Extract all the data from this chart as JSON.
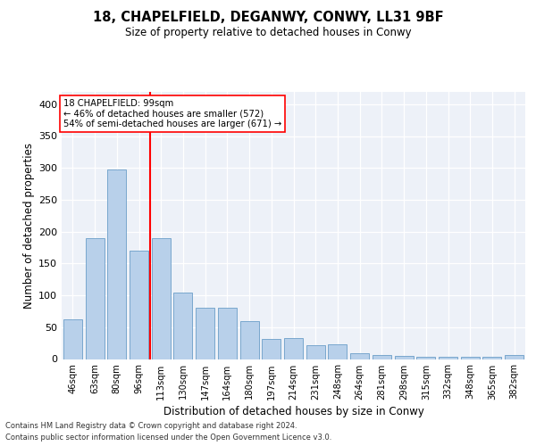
{
  "title1": "18, CHAPELFIELD, DEGANWY, CONWY, LL31 9BF",
  "title2": "Size of property relative to detached houses in Conwy",
  "xlabel": "Distribution of detached houses by size in Conwy",
  "ylabel": "Number of detached properties",
  "categories": [
    "46sqm",
    "63sqm",
    "80sqm",
    "96sqm",
    "113sqm",
    "130sqm",
    "147sqm",
    "164sqm",
    "180sqm",
    "197sqm",
    "214sqm",
    "231sqm",
    "248sqm",
    "264sqm",
    "281sqm",
    "298sqm",
    "315sqm",
    "332sqm",
    "348sqm",
    "365sqm",
    "382sqm"
  ],
  "values": [
    63,
    190,
    297,
    170,
    190,
    105,
    80,
    80,
    60,
    31,
    33,
    22,
    23,
    9,
    7,
    5,
    4,
    4,
    4,
    3,
    7
  ],
  "bar_color": "#b8d0ea",
  "bar_edge_color": "#6b9ec8",
  "vline_color": "red",
  "property_label": "18 CHAPELFIELD: 99sqm",
  "annotation_line1": "← 46% of detached houses are smaller (572)",
  "annotation_line2": "54% of semi-detached houses are larger (671) →",
  "ylim": [
    0,
    420
  ],
  "yticks": [
    0,
    50,
    100,
    150,
    200,
    250,
    300,
    350,
    400
  ],
  "footer1": "Contains HM Land Registry data © Crown copyright and database right 2024.",
  "footer2": "Contains public sector information licensed under the Open Government Licence v3.0."
}
